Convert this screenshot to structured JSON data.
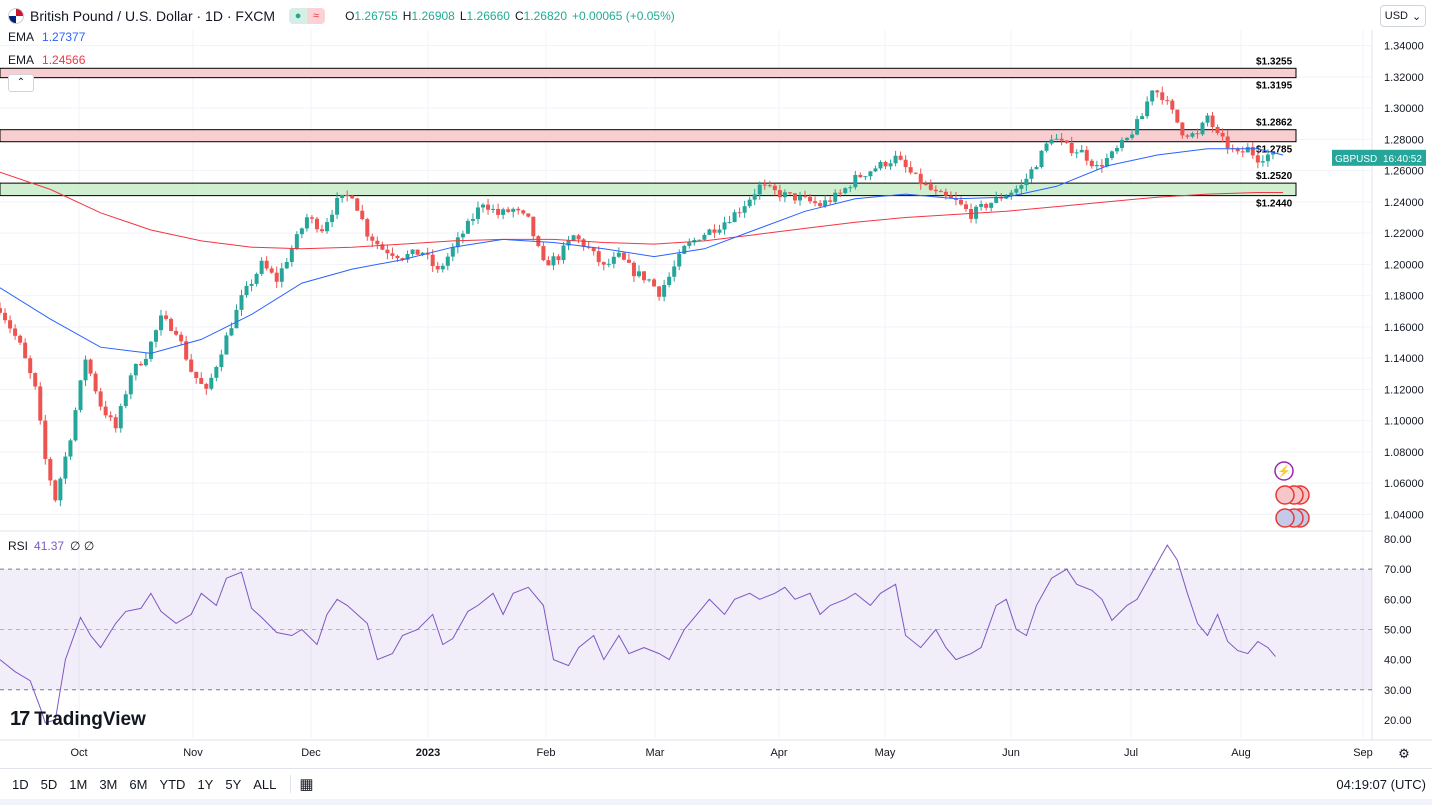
{
  "header": {
    "symbol_title": "British Pound / U.S. Dollar · 1D · FXCM",
    "ohlc": [
      {
        "label": "O",
        "value": "1.26755"
      },
      {
        "label": "H",
        "value": "1.26908"
      },
      {
        "label": "L",
        "value": "1.26660"
      },
      {
        "label": "C",
        "value": "1.26820"
      }
    ],
    "change": "+0.00065 (+0.05%)"
  },
  "indicators": {
    "ema_fast": {
      "label": "EMA",
      "value": "1.27377",
      "color": "#2962ff"
    },
    "ema_slow": {
      "label": "EMA",
      "value": "1.24566",
      "color": "#f23645"
    },
    "rsi": {
      "label": "RSI",
      "value": "41.37",
      "extra": "∅ ∅"
    }
  },
  "collapse_label": "⌃",
  "currency": {
    "label": "USD",
    "icon": "chevron-down-icon"
  },
  "branding": {
    "logo_mark": "17",
    "logo_text": "TradingView"
  },
  "footer": {
    "ranges": [
      "1D",
      "5D",
      "1M",
      "3M",
      "6M",
      "YTD",
      "1Y",
      "5Y",
      "ALL"
    ],
    "calendar_icon": "calendar-range-icon",
    "clock": "04:19:07 (UTC)"
  },
  "chart_data": {
    "type": "candlestick",
    "symbol": "GBPUSD",
    "price_axis": {
      "ticks": [
        "1.34000",
        "1.32000",
        "1.30000",
        "1.28000",
        "1.26000",
        "1.24000",
        "1.22000",
        "1.20000",
        "1.18000",
        "1.16000",
        "1.14000",
        "1.12000",
        "1.10000",
        "1.08000",
        "1.06000",
        "1.04000"
      ],
      "range": [
        1.03,
        1.35
      ]
    },
    "time_axis": [
      "Oct",
      "Nov",
      "Dec",
      "2023",
      "Feb",
      "Mar",
      "Apr",
      "May",
      "Jun",
      "Jul",
      "Aug",
      "Sep"
    ],
    "last_price_label": {
      "symbol": "GBPUSD",
      "countdown": "16:40:52",
      "price": 1.2682
    },
    "zones": [
      {
        "name": "resistance",
        "top": 1.3255,
        "bottom": 1.3195,
        "top_label": "1.3255",
        "bottom_label": "1.3195",
        "color": "#f7c6c9"
      },
      {
        "name": "resistance",
        "top": 1.2862,
        "bottom": 1.2785,
        "top_label": "1.2862",
        "bottom_label": "1.2785",
        "color": "#f7c6c9"
      },
      {
        "name": "support",
        "top": 1.252,
        "bottom": 1.244,
        "top_label": "1.2520",
        "bottom_label": "1.2440",
        "color": "#c8ebc8"
      }
    ],
    "ema_fast_points": [
      [
        0,
        1.185
      ],
      [
        20,
        1.165
      ],
      [
        40,
        1.147
      ],
      [
        60,
        1.143
      ],
      [
        80,
        1.152
      ],
      [
        100,
        1.168
      ],
      [
        120,
        1.188
      ],
      [
        140,
        1.197
      ],
      [
        160,
        1.203
      ],
      [
        180,
        1.211
      ],
      [
        200,
        1.216
      ],
      [
        220,
        1.214
      ],
      [
        240,
        1.21
      ],
      [
        260,
        1.205
      ],
      [
        280,
        1.21
      ],
      [
        300,
        1.222
      ],
      [
        320,
        1.234
      ],
      [
        340,
        1.242
      ],
      [
        360,
        1.245
      ],
      [
        380,
        1.242
      ],
      [
        400,
        1.243
      ],
      [
        420,
        1.25
      ],
      [
        440,
        1.263
      ],
      [
        460,
        1.27
      ],
      [
        480,
        1.274
      ],
      [
        500,
        1.274
      ],
      [
        510,
        1.27
      ]
    ],
    "ema_slow_points": [
      [
        0,
        1.259
      ],
      [
        20,
        1.248
      ],
      [
        40,
        1.233
      ],
      [
        60,
        1.222
      ],
      [
        80,
        1.215
      ],
      [
        100,
        1.211
      ],
      [
        120,
        1.21
      ],
      [
        140,
        1.211
      ],
      [
        160,
        1.213
      ],
      [
        180,
        1.215
      ],
      [
        200,
        1.216
      ],
      [
        220,
        1.216
      ],
      [
        240,
        1.214
      ],
      [
        260,
        1.213
      ],
      [
        280,
        1.215
      ],
      [
        300,
        1.219
      ],
      [
        320,
        1.223
      ],
      [
        340,
        1.227
      ],
      [
        360,
        1.23
      ],
      [
        380,
        1.232
      ],
      [
        400,
        1.234
      ],
      [
        420,
        1.237
      ],
      [
        440,
        1.24
      ],
      [
        460,
        1.243
      ],
      [
        480,
        1.245
      ],
      [
        500,
        1.246
      ],
      [
        510,
        1.246
      ]
    ],
    "candle_keypoints": [
      [
        0,
        1.172
      ],
      [
        8,
        1.148
      ],
      [
        14,
        1.12
      ],
      [
        18,
        1.075
      ],
      [
        22,
        1.05
      ],
      [
        28,
        1.09
      ],
      [
        34,
        1.14
      ],
      [
        40,
        1.11
      ],
      [
        46,
        1.095
      ],
      [
        52,
        1.13
      ],
      [
        58,
        1.142
      ],
      [
        64,
        1.165
      ],
      [
        70,
        1.158
      ],
      [
        76,
        1.132
      ],
      [
        82,
        1.118
      ],
      [
        88,
        1.145
      ],
      [
        96,
        1.178
      ],
      [
        104,
        1.2
      ],
      [
        110,
        1.19
      ],
      [
        116,
        1.21
      ],
      [
        122,
        1.23
      ],
      [
        128,
        1.223
      ],
      [
        134,
        1.24
      ],
      [
        140,
        1.245
      ],
      [
        146,
        1.22
      ],
      [
        152,
        1.21
      ],
      [
        160,
        1.205
      ],
      [
        168,
        1.208
      ],
      [
        174,
        1.195
      ],
      [
        180,
        1.21
      ],
      [
        186,
        1.225
      ],
      [
        192,
        1.24
      ],
      [
        198,
        1.232
      ],
      [
        204,
        1.235
      ],
      [
        210,
        1.228
      ],
      [
        216,
        1.2
      ],
      [
        222,
        1.205
      ],
      [
        228,
        1.218
      ],
      [
        234,
        1.21
      ],
      [
        240,
        1.198
      ],
      [
        246,
        1.205
      ],
      [
        252,
        1.195
      ],
      [
        258,
        1.19
      ],
      [
        262,
        1.182
      ],
      [
        266,
        1.192
      ],
      [
        272,
        1.21
      ],
      [
        278,
        1.218
      ],
      [
        286,
        1.225
      ],
      [
        294,
        1.235
      ],
      [
        302,
        1.25
      ],
      [
        310,
        1.245
      ],
      [
        318,
        1.242
      ],
      [
        326,
        1.238
      ],
      [
        334,
        1.245
      ],
      [
        340,
        1.255
      ],
      [
        348,
        1.262
      ],
      [
        356,
        1.268
      ],
      [
        364,
        1.255
      ],
      [
        372,
        1.245
      ],
      [
        380,
        1.24
      ],
      [
        386,
        1.232
      ],
      [
        392,
        1.238
      ],
      [
        400,
        1.245
      ],
      [
        406,
        1.25
      ],
      [
        412,
        1.265
      ],
      [
        418,
        1.282
      ],
      [
        424,
        1.275
      ],
      [
        430,
        1.272
      ],
      [
        436,
        1.262
      ],
      [
        442,
        1.27
      ],
      [
        448,
        1.28
      ],
      [
        454,
        1.295
      ],
      [
        458,
        1.313
      ],
      [
        462,
        1.308
      ],
      [
        466,
        1.297
      ],
      [
        470,
        1.285
      ],
      [
        476,
        1.282
      ],
      [
        480,
        1.295
      ],
      [
        484,
        1.282
      ],
      [
        488,
        1.276
      ],
      [
        492,
        1.27
      ],
      [
        496,
        1.274
      ],
      [
        500,
        1.268
      ],
      [
        504,
        1.27
      ],
      [
        507,
        1.268
      ]
    ],
    "rsi_axis": {
      "ticks": [
        "80.00",
        "70.00",
        "60.00",
        "50.00",
        "40.00",
        "30.00",
        "20.00"
      ],
      "range": [
        14,
        82
      ],
      "overbought": 70,
      "oversold": 30
    },
    "rsi_points": [
      [
        0,
        40
      ],
      [
        6,
        36
      ],
      [
        12,
        33
      ],
      [
        16,
        24
      ],
      [
        18,
        19
      ],
      [
        22,
        20
      ],
      [
        26,
        40
      ],
      [
        32,
        54
      ],
      [
        36,
        48
      ],
      [
        40,
        44
      ],
      [
        46,
        52
      ],
      [
        50,
        56
      ],
      [
        56,
        57
      ],
      [
        60,
        62
      ],
      [
        64,
        56
      ],
      [
        70,
        52
      ],
      [
        76,
        55
      ],
      [
        80,
        62
      ],
      [
        86,
        58
      ],
      [
        90,
        67
      ],
      [
        96,
        69
      ],
      [
        100,
        57
      ],
      [
        104,
        54
      ],
      [
        110,
        49
      ],
      [
        116,
        48
      ],
      [
        120,
        50
      ],
      [
        126,
        45
      ],
      [
        130,
        55
      ],
      [
        134,
        60
      ],
      [
        138,
        58
      ],
      [
        142,
        55
      ],
      [
        146,
        52
      ],
      [
        150,
        40
      ],
      [
        156,
        42
      ],
      [
        160,
        48
      ],
      [
        166,
        50
      ],
      [
        172,
        55
      ],
      [
        176,
        45
      ],
      [
        180,
        47
      ],
      [
        186,
        56
      ],
      [
        190,
        58
      ],
      [
        196,
        62
      ],
      [
        200,
        55
      ],
      [
        204,
        62
      ],
      [
        210,
        64
      ],
      [
        216,
        58
      ],
      [
        220,
        40
      ],
      [
        226,
        38
      ],
      [
        230,
        44
      ],
      [
        236,
        48
      ],
      [
        240,
        40
      ],
      [
        246,
        48
      ],
      [
        250,
        42
      ],
      [
        256,
        44
      ],
      [
        262,
        42
      ],
      [
        266,
        40
      ],
      [
        272,
        50
      ],
      [
        278,
        56
      ],
      [
        282,
        60
      ],
      [
        288,
        55
      ],
      [
        292,
        60
      ],
      [
        298,
        62
      ],
      [
        302,
        60
      ],
      [
        308,
        62
      ],
      [
        312,
        64
      ],
      [
        316,
        60
      ],
      [
        322,
        62
      ],
      [
        326,
        55
      ],
      [
        330,
        58
      ],
      [
        336,
        60
      ],
      [
        340,
        62
      ],
      [
        346,
        58
      ],
      [
        350,
        62
      ],
      [
        356,
        65
      ],
      [
        360,
        48
      ],
      [
        366,
        44
      ],
      [
        372,
        50
      ],
      [
        376,
        44
      ],
      [
        380,
        40
      ],
      [
        386,
        42
      ],
      [
        390,
        44
      ],
      [
        396,
        58
      ],
      [
        400,
        60
      ],
      [
        404,
        50
      ],
      [
        408,
        48
      ],
      [
        412,
        58
      ],
      [
        418,
        67
      ],
      [
        424,
        70
      ],
      [
        428,
        65
      ],
      [
        434,
        63
      ],
      [
        438,
        60
      ],
      [
        442,
        53
      ],
      [
        448,
        58
      ],
      [
        452,
        60
      ],
      [
        456,
        66
      ],
      [
        460,
        72
      ],
      [
        464,
        78
      ],
      [
        468,
        73
      ],
      [
        472,
        62
      ],
      [
        476,
        52
      ],
      [
        480,
        48
      ],
      [
        484,
        55
      ],
      [
        488,
        46
      ],
      [
        492,
        43
      ],
      [
        496,
        42
      ],
      [
        500,
        46
      ],
      [
        504,
        44
      ],
      [
        507,
        41
      ]
    ]
  }
}
